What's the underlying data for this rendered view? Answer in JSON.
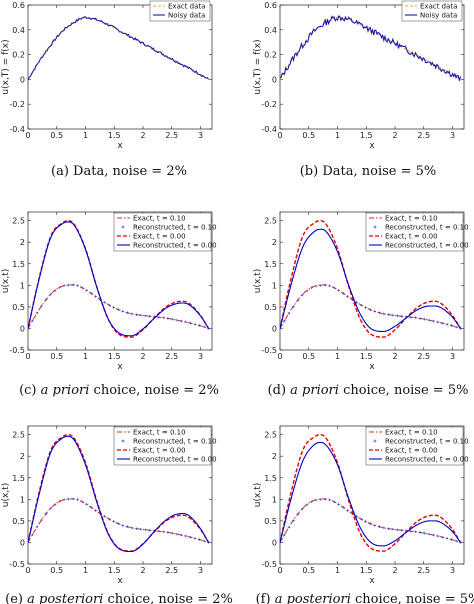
{
  "captions": {
    "a": "(a) Data, noise = 2%",
    "b": "(b) Data, noise = 5%",
    "c_pre": "(c) ",
    "c_it": "a priori",
    "c_post": " choice, noise = 2%",
    "d_pre": "(d) ",
    "d_it": "a priori",
    "d_post": " choice, noise = 5%",
    "e_pre": "(e) ",
    "e_it": "a posteriori",
    "e_post": " choice, noise = 2%",
    "f_pre": "(f) ",
    "f_it": "a posteriori",
    "f_post": " choice, noise = 5%"
  },
  "colors": {
    "exact_t010": "#d62728",
    "reconstructed_t010": "#1f3fd6",
    "exact_t000": "#e60000",
    "reconstructed_t000": "#0000c8",
    "exact_data": "#f0a040",
    "noisy_data": "#1a1aa8"
  },
  "chart_data": [
    {
      "id": "a",
      "type": "line",
      "xlabel": "x",
      "ylabel": "u(x,T) = f(x)",
      "xlim": [
        0,
        3.2
      ],
      "ylim": [
        -0.4,
        0.6
      ],
      "xticks": [
        "0",
        "0.5",
        "1",
        "1.5",
        "2",
        "2.5",
        "3"
      ],
      "yticks": [
        "-0.4",
        "-0.2",
        "0",
        "0.2",
        "0.4",
        "0.6"
      ],
      "legend": [
        "Exact data",
        "Noisy data"
      ],
      "noise": 0.02,
      "series": [
        {
          "name": "Exact data",
          "x": [
            0,
            0.2,
            0.4,
            0.6,
            0.8,
            1.0,
            1.2,
            1.4,
            1.6,
            1.8,
            2.0,
            2.2,
            2.4,
            2.6,
            2.8,
            3.0,
            3.14
          ],
          "y": [
            0,
            0.15,
            0.28,
            0.39,
            0.46,
            0.5,
            0.48,
            0.44,
            0.39,
            0.34,
            0.29,
            0.24,
            0.19,
            0.14,
            0.09,
            0.04,
            0
          ]
        }
      ]
    },
    {
      "id": "b",
      "type": "line",
      "xlabel": "x",
      "ylabel": "u(x,T) = f(x)",
      "xlim": [
        0,
        3.2
      ],
      "ylim": [
        -0.4,
        0.6
      ],
      "xticks": [
        "0",
        "0.5",
        "1",
        "1.5",
        "2",
        "2.5",
        "3"
      ],
      "yticks": [
        "-0.4",
        "-0.2",
        "0",
        "0.2",
        "0.4",
        "0.6"
      ],
      "legend": [
        "Exact data",
        "Noisy data"
      ],
      "noise": 0.05,
      "series": [
        {
          "name": "Exact data",
          "x": [
            0,
            0.2,
            0.4,
            0.6,
            0.8,
            1.0,
            1.2,
            1.4,
            1.6,
            1.8,
            2.0,
            2.2,
            2.4,
            2.6,
            2.8,
            3.0,
            3.14
          ],
          "y": [
            0,
            0.15,
            0.28,
            0.39,
            0.46,
            0.5,
            0.48,
            0.44,
            0.39,
            0.34,
            0.29,
            0.24,
            0.19,
            0.14,
            0.09,
            0.04,
            0
          ]
        }
      ]
    },
    {
      "id": "c",
      "type": "line",
      "xlabel": "x",
      "ylabel": "u(x,t)",
      "xlim": [
        0,
        3.2
      ],
      "ylim": [
        -0.5,
        2.7
      ],
      "xticks": [
        "0",
        "0.5",
        "1",
        "1.5",
        "2",
        "2.5",
        "3"
      ],
      "yticks": [
        "-0.5",
        "0",
        "0.5",
        "1",
        "1.5",
        "2",
        "2.5"
      ],
      "legend": [
        "Exact, t = 0.10",
        "Reconstructed, t = 0.10",
        "Exact, t = 0.00",
        "Reconstructed, t = 0.00"
      ],
      "series": [
        {
          "name": "Exact, t = 0.10",
          "x": [
            0,
            0.2,
            0.4,
            0.6,
            0.8,
            1.0,
            1.2,
            1.4,
            1.6,
            1.8,
            2.0,
            2.2,
            2.4,
            2.6,
            2.8,
            3.0,
            3.14
          ],
          "y": [
            0,
            0.45,
            0.8,
            0.98,
            1.01,
            0.9,
            0.72,
            0.55,
            0.42,
            0.34,
            0.3,
            0.27,
            0.24,
            0.19,
            0.13,
            0.06,
            0
          ]
        },
        {
          "name": "Reconstructed, t = 0.10",
          "x": [
            0,
            0.2,
            0.4,
            0.6,
            0.8,
            1.0,
            1.2,
            1.4,
            1.6,
            1.8,
            2.0,
            2.2,
            2.4,
            2.6,
            2.8,
            3.0,
            3.14
          ],
          "y": [
            0,
            0.45,
            0.8,
            0.98,
            1.01,
            0.9,
            0.72,
            0.55,
            0.42,
            0.34,
            0.3,
            0.27,
            0.24,
            0.19,
            0.13,
            0.06,
            0
          ]
        },
        {
          "name": "Exact, t = 0.00",
          "x": [
            0,
            0.2,
            0.4,
            0.6,
            0.7,
            0.8,
            1.0,
            1.2,
            1.4,
            1.6,
            1.8,
            2.0,
            2.2,
            2.4,
            2.6,
            2.7,
            2.8,
            3.0,
            3.14
          ],
          "y": [
            0,
            1.2,
            2.15,
            2.45,
            2.5,
            2.42,
            1.85,
            0.95,
            0.2,
            -0.15,
            -0.2,
            -0.03,
            0.25,
            0.5,
            0.62,
            0.63,
            0.58,
            0.3,
            0
          ]
        },
        {
          "name": "Reconstructed, t = 0.00",
          "x": [
            0,
            0.2,
            0.4,
            0.6,
            0.7,
            0.8,
            1.0,
            1.2,
            1.4,
            1.6,
            1.8,
            2.0,
            2.2,
            2.4,
            2.6,
            2.7,
            2.8,
            3.0,
            3.14
          ],
          "y": [
            0,
            1.18,
            2.12,
            2.43,
            2.47,
            2.4,
            1.83,
            0.94,
            0.21,
            -0.12,
            -0.17,
            -0.01,
            0.24,
            0.47,
            0.58,
            0.59,
            0.55,
            0.29,
            0
          ]
        }
      ]
    },
    {
      "id": "d",
      "type": "line",
      "xlabel": "x",
      "ylabel": "u(x,t)",
      "xlim": [
        0,
        3.2
      ],
      "ylim": [
        -0.5,
        2.7
      ],
      "xticks": [
        "0",
        "0.5",
        "1",
        "1.5",
        "2",
        "2.5",
        "3"
      ],
      "yticks": [
        "-0.5",
        "0",
        "0.5",
        "1",
        "1.5",
        "2",
        "2.5"
      ],
      "legend": [
        "Exact, t = 0.10",
        "Reconstructed, t = 0.10",
        "Exact, t = 0.00",
        "Reconstructed, t = 0.00"
      ],
      "series": [
        {
          "name": "Exact, t = 0.10",
          "x": [
            0,
            0.2,
            0.4,
            0.6,
            0.8,
            1.0,
            1.2,
            1.4,
            1.6,
            1.8,
            2.0,
            2.2,
            2.4,
            2.6,
            2.8,
            3.0,
            3.14
          ],
          "y": [
            0,
            0.45,
            0.8,
            0.98,
            1.01,
            0.9,
            0.72,
            0.55,
            0.42,
            0.34,
            0.3,
            0.27,
            0.24,
            0.19,
            0.13,
            0.06,
            0
          ]
        },
        {
          "name": "Reconstructed, t = 0.10",
          "x": [
            0,
            0.2,
            0.4,
            0.6,
            0.8,
            1.0,
            1.2,
            1.4,
            1.6,
            1.8,
            2.0,
            2.2,
            2.4,
            2.6,
            2.8,
            3.0,
            3.14
          ],
          "y": [
            0,
            0.44,
            0.79,
            0.97,
            1.0,
            0.9,
            0.72,
            0.55,
            0.42,
            0.34,
            0.3,
            0.27,
            0.24,
            0.19,
            0.13,
            0.06,
            0
          ]
        },
        {
          "name": "Exact, t = 0.00",
          "x": [
            0,
            0.2,
            0.4,
            0.6,
            0.7,
            0.8,
            1.0,
            1.2,
            1.4,
            1.6,
            1.8,
            2.0,
            2.2,
            2.4,
            2.6,
            2.7,
            2.8,
            3.0,
            3.14
          ],
          "y": [
            0,
            1.2,
            2.15,
            2.45,
            2.5,
            2.42,
            1.85,
            0.95,
            0.2,
            -0.15,
            -0.2,
            -0.03,
            0.25,
            0.5,
            0.62,
            0.63,
            0.58,
            0.3,
            0
          ]
        },
        {
          "name": "Reconstructed, t = 0.00",
          "x": [
            0,
            0.2,
            0.4,
            0.6,
            0.7,
            0.8,
            1.0,
            1.2,
            1.4,
            1.6,
            1.8,
            2.0,
            2.2,
            2.4,
            2.6,
            2.7,
            2.8,
            3.0,
            3.14
          ],
          "y": [
            0,
            1.05,
            1.9,
            2.25,
            2.3,
            2.25,
            1.78,
            0.98,
            0.32,
            -0.02,
            -0.07,
            0.05,
            0.25,
            0.44,
            0.52,
            0.52,
            0.48,
            0.26,
            0
          ]
        }
      ]
    },
    {
      "id": "e",
      "type": "line",
      "xlabel": "x",
      "ylabel": "u(x,t)",
      "xlim": [
        0,
        3.2
      ],
      "ylim": [
        -0.5,
        2.7
      ],
      "xticks": [
        "0",
        "0.5",
        "1",
        "1.5",
        "2",
        "2.5",
        "3"
      ],
      "yticks": [
        "-0.5",
        "0",
        "0.5",
        "1",
        "1.5",
        "2",
        "2.5"
      ],
      "legend": [
        "Exact, t = 0.10",
        "Reconstructed, t = 0.10",
        "Exact, t = 0.00",
        "Reconstructed, t = 0.00"
      ],
      "series": [
        {
          "name": "Exact, t = 0.10",
          "x": [
            0,
            0.2,
            0.4,
            0.6,
            0.8,
            1.0,
            1.2,
            1.4,
            1.6,
            1.8,
            2.0,
            2.2,
            2.4,
            2.6,
            2.8,
            3.0,
            3.14
          ],
          "y": [
            0,
            0.45,
            0.8,
            0.98,
            1.01,
            0.9,
            0.72,
            0.55,
            0.42,
            0.34,
            0.3,
            0.27,
            0.24,
            0.19,
            0.13,
            0.06,
            0
          ]
        },
        {
          "name": "Reconstructed, t = 0.10",
          "x": [
            0,
            0.2,
            0.4,
            0.6,
            0.8,
            1.0,
            1.2,
            1.4,
            1.6,
            1.8,
            2.0,
            2.2,
            2.4,
            2.6,
            2.8,
            3.0,
            3.14
          ],
          "y": [
            0,
            0.45,
            0.8,
            0.98,
            1.01,
            0.9,
            0.72,
            0.55,
            0.42,
            0.34,
            0.3,
            0.27,
            0.24,
            0.19,
            0.13,
            0.06,
            0
          ]
        },
        {
          "name": "Exact, t = 0.00",
          "x": [
            0,
            0.2,
            0.4,
            0.6,
            0.7,
            0.8,
            1.0,
            1.2,
            1.4,
            1.6,
            1.8,
            2.0,
            2.2,
            2.4,
            2.6,
            2.7,
            2.8,
            3.0,
            3.14
          ],
          "y": [
            0,
            1.2,
            2.15,
            2.45,
            2.5,
            2.42,
            1.85,
            0.95,
            0.2,
            -0.15,
            -0.2,
            -0.03,
            0.25,
            0.5,
            0.62,
            0.63,
            0.58,
            0.3,
            0
          ]
        },
        {
          "name": "Reconstructed, t = 0.00",
          "x": [
            0,
            0.2,
            0.4,
            0.6,
            0.7,
            0.8,
            1.0,
            1.2,
            1.4,
            1.6,
            1.8,
            2.0,
            2.2,
            2.4,
            2.6,
            2.7,
            2.8,
            3.0,
            3.14
          ],
          "y": [
            0,
            1.15,
            2.1,
            2.42,
            2.46,
            2.38,
            1.8,
            0.92,
            0.18,
            -0.16,
            -0.21,
            -0.04,
            0.26,
            0.52,
            0.66,
            0.67,
            0.62,
            0.32,
            0
          ]
        }
      ]
    },
    {
      "id": "f",
      "type": "line",
      "xlabel": "x",
      "ylabel": "u(x,t)",
      "xlim": [
        0,
        3.2
      ],
      "ylim": [
        -0.5,
        2.7
      ],
      "xticks": [
        "0",
        "0.5",
        "1",
        "1.5",
        "2",
        "2.5",
        "3"
      ],
      "yticks": [
        "-0.5",
        "0",
        "0.5",
        "1",
        "1.5",
        "2",
        "2.5"
      ],
      "legend": [
        "Exact, t = 0.10",
        "Reconstructed, t = 0.10",
        "Exact, t = 0.00",
        "Reconstructed, t = 0.00"
      ],
      "series": [
        {
          "name": "Exact, t = 0.10",
          "x": [
            0,
            0.2,
            0.4,
            0.6,
            0.8,
            1.0,
            1.2,
            1.4,
            1.6,
            1.8,
            2.0,
            2.2,
            2.4,
            2.6,
            2.8,
            3.0,
            3.14
          ],
          "y": [
            0,
            0.45,
            0.8,
            0.98,
            1.01,
            0.9,
            0.72,
            0.55,
            0.42,
            0.34,
            0.3,
            0.27,
            0.24,
            0.19,
            0.13,
            0.06,
            0
          ]
        },
        {
          "name": "Reconstructed, t = 0.10",
          "x": [
            0,
            0.2,
            0.4,
            0.6,
            0.8,
            1.0,
            1.2,
            1.4,
            1.6,
            1.8,
            2.0,
            2.2,
            2.4,
            2.6,
            2.8,
            3.0,
            3.14
          ],
          "y": [
            0,
            0.44,
            0.79,
            0.97,
            1.0,
            0.9,
            0.72,
            0.55,
            0.42,
            0.34,
            0.3,
            0.27,
            0.24,
            0.19,
            0.13,
            0.06,
            0
          ]
        },
        {
          "name": "Exact, t = 0.00",
          "x": [
            0,
            0.2,
            0.4,
            0.6,
            0.7,
            0.8,
            1.0,
            1.2,
            1.4,
            1.6,
            1.8,
            2.0,
            2.2,
            2.4,
            2.6,
            2.7,
            2.8,
            3.0,
            3.14
          ],
          "y": [
            0,
            1.2,
            2.15,
            2.45,
            2.5,
            2.42,
            1.85,
            0.95,
            0.2,
            -0.15,
            -0.2,
            -0.03,
            0.25,
            0.5,
            0.62,
            0.63,
            0.58,
            0.3,
            0
          ]
        },
        {
          "name": "Reconstructed, t = 0.00",
          "x": [
            0,
            0.2,
            0.4,
            0.6,
            0.7,
            0.8,
            1.0,
            1.2,
            1.4,
            1.6,
            1.8,
            2.0,
            2.2,
            2.4,
            2.6,
            2.7,
            2.8,
            3.0,
            3.14
          ],
          "y": [
            0,
            1.05,
            1.9,
            2.27,
            2.32,
            2.26,
            1.8,
            1.0,
            0.33,
            -0.02,
            -0.08,
            0.04,
            0.24,
            0.42,
            0.5,
            0.5,
            0.46,
            0.25,
            0
          ]
        }
      ]
    }
  ]
}
